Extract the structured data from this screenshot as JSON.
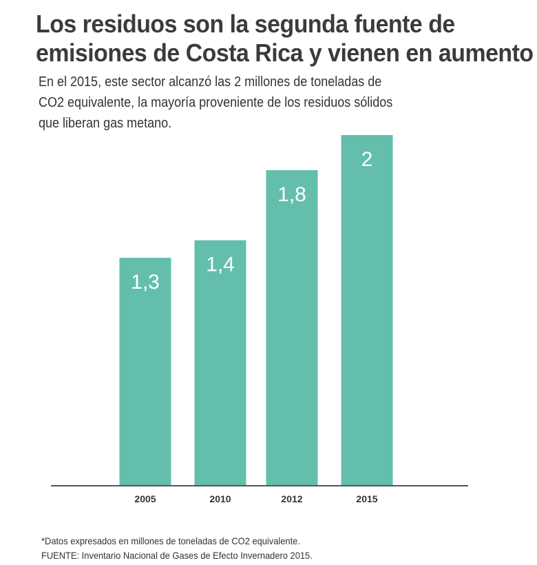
{
  "title": {
    "line1": "Los residuos son la segunda fuente de",
    "line2": "emisiones de Costa Rica y vienen en aumento"
  },
  "subtitle": {
    "line1": "En el 2015, este sector alcanzó las 2 millones de toneladas de",
    "line2": "CO2 equivalente, la mayoría proveniente de los residuos sólidos",
    "line3": "que liberan gas metano."
  },
  "chart_data": {
    "type": "bar",
    "title": "Los residuos son la segunda fuente de emisiones de Costa Rica y vienen en aumento",
    "categories": [
      "2005",
      "2010",
      "2012",
      "2015"
    ],
    "values": [
      1.3,
      1.4,
      1.8,
      2
    ],
    "value_labels": [
      "1,3",
      "1,4",
      "1,8",
      "2"
    ],
    "xlabel": "",
    "ylabel": "",
    "ylim": [
      0,
      2
    ],
    "grid": false,
    "bar_color": "#63bfac",
    "label_color": "#ffffff",
    "axis_color": "#555555"
  },
  "footnote": {
    "note": "*Datos expresados en millones de toneladas de CO2 equivalente.",
    "source": "FUENTE: Inventario Nacional de Gases de Efecto Invernadero 2015."
  }
}
